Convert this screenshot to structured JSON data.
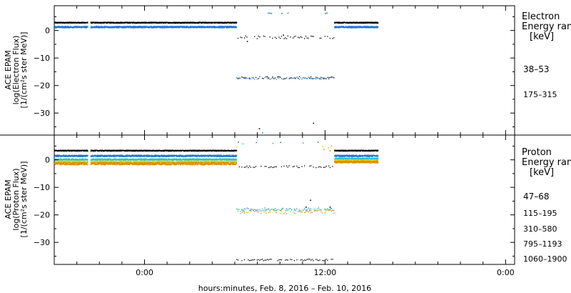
{
  "chart_data": [
    {
      "type": "scatter",
      "panel": "electron",
      "ylabel": [
        "ACE EPAM",
        "log(Electron Flux)",
        "[1/(cm²s ster MeV)]"
      ],
      "legend_title": [
        "Electron",
        "Energy ran",
        "[keV]"
      ],
      "ylim": [
        -38,
        9
      ],
      "yticks": [
        0,
        -10,
        -20,
        -30
      ],
      "ytick_labels": [
        "0",
        "−10",
        "−20",
        "−30"
      ],
      "series": [
        {
          "name": "38–53",
          "color": "#000000",
          "segments": [
            {
              "x0": -6.0,
              "x1": -3.8,
              "y": 3.0,
              "spread": 0.2
            },
            {
              "x0": -3.6,
              "x1": 6.1,
              "y": 3.0,
              "spread": 0.2
            },
            {
              "x0": 6.1,
              "x1": 12.6,
              "y": -2.3,
              "spread": 0.5
            },
            {
              "x0": 6.1,
              "x1": 12.6,
              "y": -17.0,
              "spread": 0.4
            },
            {
              "x0": 12.6,
              "x1": 15.5,
              "y": 3.0,
              "spread": 0.2
            }
          ],
          "points": [
            [
              7.6,
              -35.5
            ],
            [
              11.2,
              -33.5
            ],
            [
              6.8,
              -3.8
            ],
            [
              9.2,
              -1.5
            ]
          ]
        },
        {
          "name": "175–315",
          "color": "#1f77d0",
          "segments": [
            {
              "x0": -6.0,
              "x1": -3.8,
              "y": 1.4,
              "spread": 0.3
            },
            {
              "x0": -3.6,
              "x1": 6.1,
              "y": 1.4,
              "spread": 0.3
            },
            {
              "x0": 6.1,
              "x1": 12.6,
              "y": -17.2,
              "spread": 0.4
            },
            {
              "x0": 12.6,
              "x1": 15.5,
              "y": 1.4,
              "spread": 0.3
            }
          ],
          "points": [
            [
              8.2,
              6.5
            ],
            [
              8.3,
              6.5
            ],
            [
              8.4,
              6.4
            ],
            [
              9.1,
              6.4
            ],
            [
              9.5,
              6.5
            ],
            [
              12.0,
              6.4
            ],
            [
              12.1,
              6.5
            ],
            [
              7.8,
              -37.0
            ]
          ]
        }
      ]
    },
    {
      "type": "scatter",
      "panel": "proton",
      "ylabel": [
        "ACE EPAM",
        "log(Proton Flux)",
        "[1/(cm²s ster MeV)]"
      ],
      "legend_title": [
        "Proton",
        "Energy ran",
        "[keV]"
      ],
      "ylim": [
        -38,
        9
      ],
      "yticks": [
        0,
        -10,
        -20,
        -30
      ],
      "ytick_labels": [
        "0",
        "−10",
        "−20",
        "−30"
      ],
      "series": [
        {
          "name": "47–68",
          "color": "#000000",
          "segments": [
            {
              "x0": -6.0,
              "x1": -3.8,
              "y": 3.5,
              "spread": 0.2
            },
            {
              "x0": -3.6,
              "x1": 6.1,
              "y": 3.5,
              "spread": 0.2
            },
            {
              "x0": 6.1,
              "x1": 12.6,
              "y": -2.3,
              "spread": 0.4
            },
            {
              "x0": 6.1,
              "x1": 12.6,
              "y": -36.2,
              "spread": 0.3
            },
            {
              "x0": 12.6,
              "x1": 15.5,
              "y": 3.5,
              "spread": 0.2
            }
          ],
          "points": [
            [
              11.0,
              -14.5
            ],
            [
              10.7,
              -17.0
            ],
            [
              12.3,
              -17.0
            ]
          ]
        },
        {
          "name": "115–195",
          "color": "#1f77d0",
          "segments": [
            {
              "x0": -6.0,
              "x1": -3.8,
              "y": 1.6,
              "spread": 0.3
            },
            {
              "x0": -3.6,
              "x1": 6.1,
              "y": 1.6,
              "spread": 0.3
            },
            {
              "x0": 6.1,
              "x1": 12.6,
              "y": -17.8,
              "spread": 0.5
            },
            {
              "x0": 12.6,
              "x1": 15.5,
              "y": 1.6,
              "spread": 0.3
            }
          ],
          "points": [
            [
              6.2,
              6.6
            ],
            [
              7.4,
              6.5
            ],
            [
              9.0,
              6.5
            ],
            [
              11.5,
              6.6
            ]
          ]
        },
        {
          "name": "310–580",
          "color": "#22c5d0",
          "segments": [
            {
              "x0": -6.0,
              "x1": -3.8,
              "y": 0.3,
              "spread": 0.3
            },
            {
              "x0": -3.6,
              "x1": 6.1,
              "y": 0.3,
              "spread": 0.3
            },
            {
              "x0": 6.1,
              "x1": 12.6,
              "y": -18.0,
              "spread": 0.5
            },
            {
              "x0": 12.6,
              "x1": 15.5,
              "y": 0.6,
              "spread": 0.3
            }
          ],
          "points": [
            [
              6.5,
              6.0
            ],
            [
              8.5,
              6.2
            ],
            [
              10.5,
              6.3
            ]
          ]
        },
        {
          "name": "795–1193",
          "color": "#d7d700",
          "segments": [
            {
              "x0": -6.0,
              "x1": -3.8,
              "y": -0.6,
              "spread": 0.4
            },
            {
              "x0": -3.6,
              "x1": 6.1,
              "y": -0.6,
              "spread": 0.4
            },
            {
              "x0": 6.1,
              "x1": 12.6,
              "y": -18.3,
              "spread": 0.6
            },
            {
              "x0": 12.6,
              "x1": 15.5,
              "y": -0.2,
              "spread": 0.4
            }
          ],
          "points": [
            [
              6.1,
              4.8
            ],
            [
              11.8,
              5.0
            ],
            [
              12.2,
              4.5
            ],
            [
              12.4,
              5.2
            ]
          ]
        },
        {
          "name": "1060–1900",
          "color": "#e08a00",
          "segments": [
            {
              "x0": -6.0,
              "x1": -3.8,
              "y": -1.2,
              "spread": 0.5
            },
            {
              "x0": -3.6,
              "x1": 6.1,
              "y": -1.2,
              "spread": 0.5
            },
            {
              "x0": 6.1,
              "x1": 12.6,
              "y": -18.8,
              "spread": 0.6
            },
            {
              "x0": 12.6,
              "x1": 15.5,
              "y": -0.6,
              "spread": 0.4
            }
          ],
          "points": [
            [
              11.9,
              4.0
            ],
            [
              12.3,
              3.5
            ]
          ]
        }
      ]
    }
  ],
  "xaxis": {
    "xlim": [
      -6.0,
      24.6
    ],
    "ticks": [
      0,
      12,
      24
    ],
    "tick_labels": [
      "0:00",
      "12:00",
      "0:00"
    ],
    "minor_step": 1.5,
    "xlabel": "hours:minutes, Feb.  8, 2016 – Feb. 10, 2016"
  }
}
